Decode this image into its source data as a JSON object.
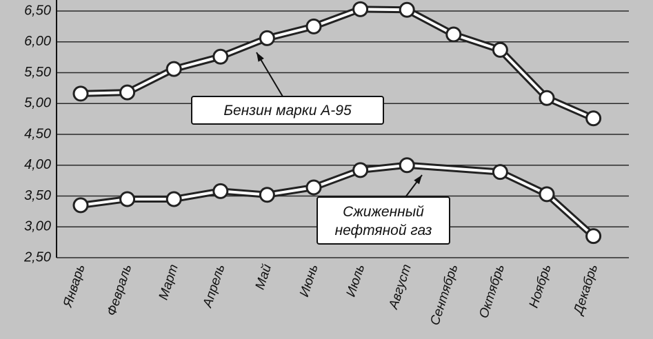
{
  "chart_data": {
    "type": "line",
    "categories": [
      "Январь",
      "Февраль",
      "Март",
      "Апрель",
      "Май",
      "Июнь",
      "Июль",
      "Август",
      "Сентябрь",
      "Октябрь",
      "Ноябрь",
      "Декабрь"
    ],
    "series": [
      {
        "name": "Бензин марки А-95",
        "color": "#222222",
        "x": [
          "Январь",
          "Февраль",
          "Март",
          "Апрель",
          "Май",
          "Июнь",
          "Июль",
          "Август",
          "Сентябрь",
          "Октябрь",
          "Ноябрь",
          "Декабрь"
        ],
        "values": [
          5.16,
          5.18,
          5.56,
          5.76,
          6.06,
          6.25,
          6.53,
          6.52,
          6.12,
          5.87,
          5.09,
          4.76
        ]
      },
      {
        "name": [
          "Сжиженный",
          "нефтяной газ"
        ],
        "color": "#222222",
        "x": [
          "Январь",
          "Февраль",
          "Март",
          "Апрель",
          "Май",
          "Июнь",
          "Июль",
          "Август",
          "Октябрь",
          "Ноябрь",
          "Декабрь"
        ],
        "values": [
          3.35,
          3.45,
          3.45,
          3.58,
          3.52,
          3.64,
          3.92,
          4.0,
          3.89,
          3.53,
          2.85
        ]
      }
    ],
    "ylim": [
      2.5,
      6.5
    ],
    "yticks": [
      {
        "value": 2.5,
        "label": "2,50"
      },
      {
        "value": 3,
        "label": "3,00"
      },
      {
        "value": 3.5,
        "label": "3,50"
      },
      {
        "value": 4,
        "label": "4,00"
      },
      {
        "value": 4.5,
        "label": "4,50"
      },
      {
        "value": 5,
        "label": "5,00"
      },
      {
        "value": 5.5,
        "label": "5,50"
      },
      {
        "value": 6,
        "label": "6,00"
      },
      {
        "value": 6.5,
        "label": "6,50"
      }
    ],
    "grid": true
  }
}
